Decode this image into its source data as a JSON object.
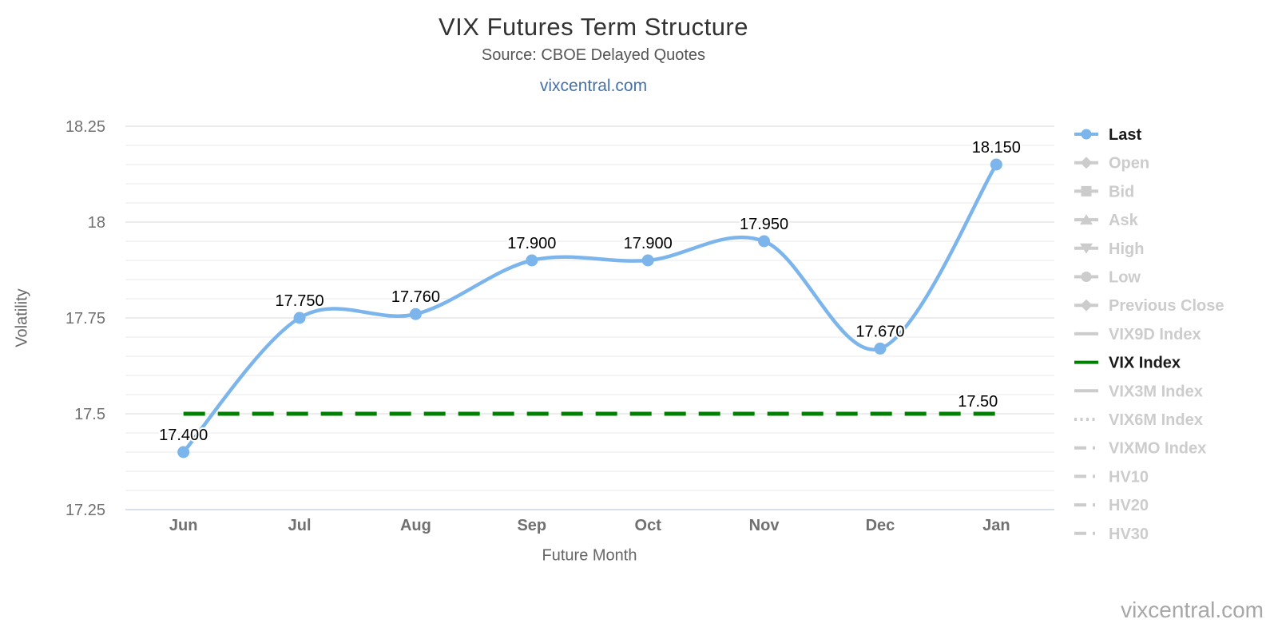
{
  "header": {
    "title": "VIX Futures Term Structure",
    "subtitle": "Source: CBOE Delayed Quotes",
    "link": "vixcentral.com"
  },
  "footer": {
    "watermark": "vixcentral.com"
  },
  "chart_data": {
    "type": "line",
    "title": "VIX Futures Term Structure",
    "subtitle": "Source: CBOE Delayed Quotes",
    "xlabel": "Future Month",
    "ylabel": "Volatility",
    "categories": [
      "Jun",
      "Jul",
      "Aug",
      "Sep",
      "Oct",
      "Nov",
      "Dec",
      "Jan"
    ],
    "series": [
      {
        "name": "Last",
        "type": "spline",
        "color": "#7cb5ec",
        "marker": "circle",
        "values": [
          17.4,
          17.75,
          17.76,
          17.9,
          17.9,
          17.95,
          17.67,
          18.15
        ],
        "point_labels": [
          "17.400",
          "17.750",
          "17.760",
          "17.900",
          "17.900",
          "17.950",
          "17.670",
          "18.150"
        ]
      },
      {
        "name": "VIX Index",
        "type": "reference_line",
        "color": "#008000",
        "style": "dashed",
        "value": 17.5,
        "label": "17.50"
      }
    ],
    "ylim": [
      17.25,
      18.25
    ],
    "yticks": [
      17.25,
      17.5,
      17.75,
      18,
      18.25
    ],
    "ytick_labels": [
      "17.25",
      "17.5",
      "17.75",
      "18",
      "18.25"
    ],
    "minor_tick_step": 0.05,
    "grid": "on",
    "legend_position": "right"
  },
  "legend": {
    "items": [
      {
        "label": "Last",
        "marker": "circle",
        "line": "solid",
        "color": "#7cb5ec",
        "text_color": "#1a1a1a",
        "active": true
      },
      {
        "label": "Open",
        "marker": "diamond",
        "line": "solid",
        "color": "#cccccc",
        "text_color": "#cccccc",
        "active": false
      },
      {
        "label": "Bid",
        "marker": "square",
        "line": "solid",
        "color": "#cccccc",
        "text_color": "#cccccc",
        "active": false
      },
      {
        "label": "Ask",
        "marker": "triangle-up",
        "line": "solid",
        "color": "#cccccc",
        "text_color": "#cccccc",
        "active": false
      },
      {
        "label": "High",
        "marker": "triangle-down",
        "line": "solid",
        "color": "#cccccc",
        "text_color": "#cccccc",
        "active": false
      },
      {
        "label": "Low",
        "marker": "circle",
        "line": "solid",
        "color": "#cccccc",
        "text_color": "#cccccc",
        "active": false
      },
      {
        "label": "Previous Close",
        "marker": "diamond",
        "line": "solid",
        "color": "#cccccc",
        "text_color": "#cccccc",
        "active": false
      },
      {
        "label": "VIX9D Index",
        "marker": "none",
        "line": "solid",
        "color": "#cccccc",
        "text_color": "#cccccc",
        "active": false
      },
      {
        "label": "VIX Index",
        "marker": "none",
        "line": "solid",
        "color": "#008000",
        "text_color": "#1a1a1a",
        "active": true
      },
      {
        "label": "VIX3M Index",
        "marker": "none",
        "line": "solid",
        "color": "#cccccc",
        "text_color": "#cccccc",
        "active": false
      },
      {
        "label": "VIX6M Index",
        "marker": "none",
        "line": "dotted",
        "color": "#cccccc",
        "text_color": "#cccccc",
        "active": false
      },
      {
        "label": "VIXMO Index",
        "marker": "none",
        "line": "dashdot",
        "color": "#cccccc",
        "text_color": "#cccccc",
        "active": false
      },
      {
        "label": "HV10",
        "marker": "none",
        "line": "dashdot",
        "color": "#cccccc",
        "text_color": "#cccccc",
        "active": false
      },
      {
        "label": "HV20",
        "marker": "none",
        "line": "dashdot",
        "color": "#cccccc",
        "text_color": "#cccccc",
        "active": false
      },
      {
        "label": "HV30",
        "marker": "none",
        "line": "dashdot",
        "color": "#cccccc",
        "text_color": "#cccccc",
        "active": false
      }
    ]
  },
  "colors": {
    "series_blue": "#7cb5ec",
    "vix_green": "#008000",
    "link_blue": "#4572a7",
    "grid_major": "#d8d8d8",
    "grid_minor": "#e8e8e8",
    "axis_line": "#ccd6eb",
    "tick_label": "#707070",
    "legend_inactive": "#cccccc",
    "data_label": "#000000"
  }
}
